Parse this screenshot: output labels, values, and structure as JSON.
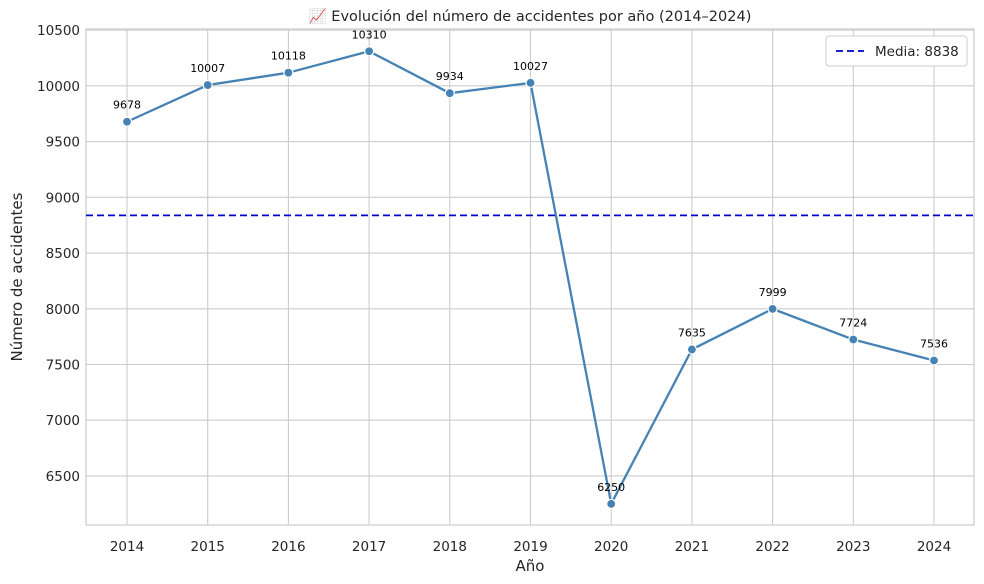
{
  "chart_data": {
    "type": "line",
    "title": "📈 Evolución del número de accidentes por año (2014–2024)",
    "xlabel": "Año",
    "ylabel": "Número de accidentes",
    "categories": [
      "2014",
      "2015",
      "2016",
      "2017",
      "2018",
      "2019",
      "2020",
      "2021",
      "2022",
      "2023",
      "2024"
    ],
    "series": [
      {
        "values": [
          9678,
          10007,
          10118,
          10310,
          9934,
          10027,
          6250,
          7635,
          7999,
          7724,
          7536
        ],
        "color": "#4682b4"
      }
    ],
    "data_labels": [
      "9678",
      "10007",
      "10118",
      "10310",
      "9934",
      "10027",
      "6250",
      "7635",
      "7999",
      "7724",
      "7536"
    ],
    "yticks": [
      6500,
      7000,
      7500,
      8000,
      8500,
      9000,
      9500,
      10000,
      10500
    ],
    "ylim": [
      6060,
      10510
    ],
    "grid": true,
    "reference_line": {
      "value": 8838,
      "label": "Media: 8838",
      "color": "#0000cd",
      "style": "dashed"
    },
    "legend_position": "top-right"
  }
}
